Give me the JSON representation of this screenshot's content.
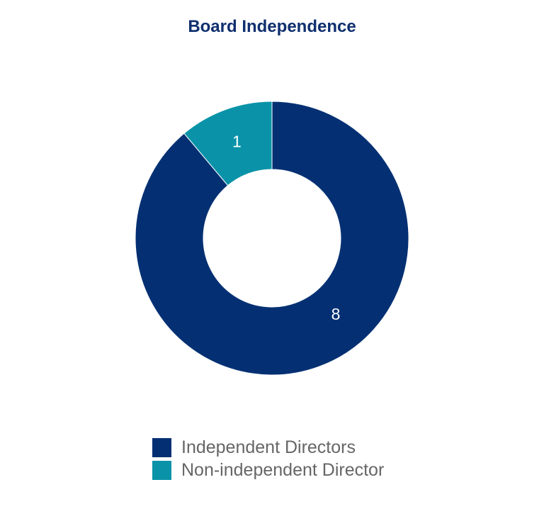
{
  "chart_data": {
    "type": "pie",
    "variant": "donut",
    "title": "Board Independence",
    "categories": [
      "Independent Directors",
      "Non-independent Director"
    ],
    "values": [
      8,
      1
    ],
    "colors": [
      "#043073",
      "#0a93a8"
    ],
    "data_labels": [
      "8",
      "1"
    ],
    "legend_position": "bottom"
  }
}
